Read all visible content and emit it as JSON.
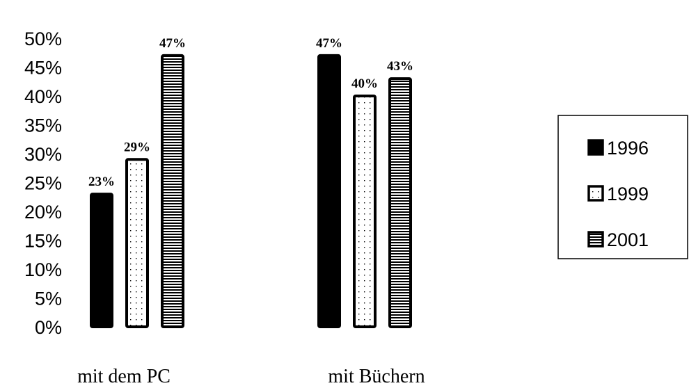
{
  "chart_data": {
    "type": "bar",
    "categories": [
      "mit dem PC",
      "mit Büchern"
    ],
    "series": [
      {
        "name": "1996",
        "values": [
          23,
          47
        ],
        "pattern": "solid"
      },
      {
        "name": "1999",
        "values": [
          29,
          40
        ],
        "pattern": "dotted"
      },
      {
        "name": "2001",
        "values": [
          47,
          43
        ],
        "pattern": "horizontal-lines"
      }
    ],
    "data_labels": [
      [
        "23%",
        "47%"
      ],
      [
        "29%",
        "40%"
      ],
      [
        "47%",
        "43%"
      ]
    ],
    "y_ticks": [
      "0%",
      "5%",
      "10%",
      "15%",
      "20%",
      "25%",
      "30%",
      "35%",
      "40%",
      "45%",
      "50%"
    ],
    "ylim": [
      0,
      50
    ],
    "grid": false,
    "legend_position": "right",
    "title": "",
    "xlabel": "",
    "ylabel": ""
  },
  "colors": {
    "bar_fill_solid": "#000000",
    "background": "#ffffff"
  }
}
